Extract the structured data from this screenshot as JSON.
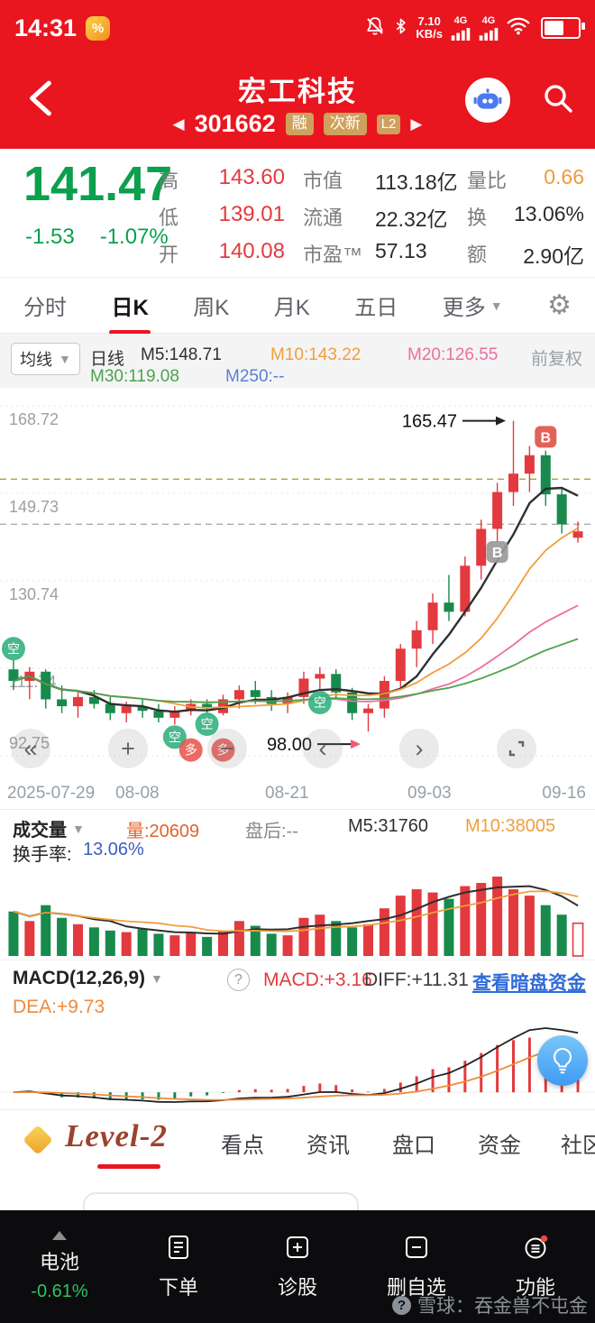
{
  "colors": {
    "brand_red": "#e9151f",
    "up": "#e23a3e",
    "down": "#178a4c",
    "price_green": "#0aa04d",
    "orange": "#ef9f3c",
    "pink": "#ed6ea0",
    "ma_green": "#4ca34c",
    "link_blue": "#2f6bd8",
    "value_blue": "#3b5fc0",
    "badge_tan": "#cfa15d"
  },
  "statusbar": {
    "time": "14:31",
    "net_speed": "7.10",
    "net_unit": "KB/s",
    "sig1": "4G",
    "sig2": "4G"
  },
  "header": {
    "title": "宏工科技",
    "code": "301662",
    "badge_rong": "融",
    "badge_cixin": "次新",
    "badge_l2": "L2"
  },
  "quote": {
    "price": "141.47",
    "change": "-1.53",
    "change_pct": "-1.07%",
    "rows": [
      {
        "l1": "高",
        "v1": "143.60",
        "l2": "市值",
        "v2": "113.18亿",
        "l3": "量比",
        "v3": "0.66"
      },
      {
        "l1": "低",
        "v1": "139.01",
        "l2": "流通",
        "v2": "22.32亿",
        "l3": "换",
        "v3": "13.06%"
      },
      {
        "l1": "开",
        "v1": "140.08",
        "l2": "市盈™",
        "v2": "57.13",
        "l3": "额",
        "v3": "2.90亿"
      }
    ]
  },
  "tabs": {
    "t0": "分时",
    "t1": "日K",
    "t2": "周K",
    "t3": "月K",
    "t4": "五日",
    "more": "更多"
  },
  "ma_legend": {
    "dropdown": "均线",
    "period": "日线",
    "m5": "M5:148.71",
    "m10": "M10:143.22",
    "m20": "M20:126.55",
    "m30": "M30:119.08",
    "m250": "M250:--",
    "adjust": "前复权"
  },
  "volume_legend": {
    "dropdown": "成交量",
    "vol": "量:20609",
    "after_hours": "盘后:--",
    "m5": "M5:31760",
    "m10": "M10:38005",
    "turnover_label": "换手率:",
    "turnover_value": "13.06%"
  },
  "macd_legend": {
    "dropdown": "MACD(12,26,9)",
    "help": "?",
    "macd": "MACD:+3.16",
    "diff": "DIFF:+11.31",
    "dea": "DEA:+9.73",
    "link": "查看暗盘资金"
  },
  "bottom_tabs": {
    "level2": "Level-2",
    "t1": "看点",
    "t2": "资讯",
    "t3": "盘口",
    "t4": "资金",
    "t5": "社区"
  },
  "navbar": {
    "battery_label": "电池",
    "battery_pct": "-0.61%",
    "order": "下单",
    "diagnose": "诊股",
    "remove": "删自选",
    "functions": "功能"
  },
  "watermark": "雪球：吞金兽不屯金",
  "chart_data": [
    {
      "type": "candlestick",
      "symbol": "301662 宏工科技",
      "period": "日K",
      "adjust": "前复权",
      "y_ticks": [
        168.72,
        149.73,
        130.74,
        111.74,
        92.75
      ],
      "ylim": [
        92.75,
        168.72
      ],
      "x_ticks": [
        {
          "label": "2025-07-29",
          "i": 0
        },
        {
          "label": "08-08",
          "i": 8
        },
        {
          "label": "08-21",
          "i": 17
        },
        {
          "label": "09-03",
          "i": 26
        },
        {
          "label": "09-16",
          "i": 35
        }
      ],
      "up_color": "#e23a3e",
      "down_color": "#178a4c",
      "ma_colors": {
        "m5": "#2f2f2f",
        "m10": "#ef9f3c",
        "m20": "#ed6ea0",
        "m30": "#4ca34c"
      },
      "ma_values": {
        "M5": 148.71,
        "M10": 143.22,
        "M20": 126.55,
        "M30": 119.08,
        "M250": null
      },
      "candles": [
        [
          111.5,
          113.5,
          107,
          109
        ],
        [
          109,
          112,
          105,
          111
        ],
        [
          111,
          111.5,
          103,
          105
        ],
        [
          105,
          108,
          102,
          103.5
        ],
        [
          103.5,
          106.5,
          101,
          105.5
        ],
        [
          105.5,
          107,
          103,
          104
        ],
        [
          104,
          105.5,
          100.5,
          102
        ],
        [
          102,
          104.5,
          100,
          103.5
        ],
        [
          103.5,
          105,
          101,
          102.5
        ],
        [
          102.5,
          104,
          100,
          101
        ],
        [
          101,
          103.5,
          99.5,
          102.5
        ],
        [
          102.5,
          105,
          101.5,
          104
        ],
        [
          104,
          105,
          102,
          103
        ],
        [
          102,
          106,
          101.5,
          105
        ],
        [
          105,
          108,
          103,
          107
        ],
        [
          107,
          109,
          104,
          105.5
        ],
        [
          105.5,
          107,
          102.5,
          104
        ],
        [
          104,
          106.5,
          102,
          105.5
        ],
        [
          105.5,
          111,
          104,
          109.5
        ],
        [
          109.5,
          112,
          107,
          110.5
        ],
        [
          110.5,
          111.5,
          105,
          106.5
        ],
        [
          106.5,
          107.5,
          100.5,
          102
        ],
        [
          102,
          104,
          98,
          103
        ],
        [
          103,
          110,
          101,
          109
        ],
        [
          109,
          117,
          107,
          116
        ],
        [
          116,
          122,
          112,
          120
        ],
        [
          120,
          128,
          117,
          126
        ],
        [
          126,
          132,
          122,
          124
        ],
        [
          124,
          136,
          123,
          134
        ],
        [
          134,
          144,
          131,
          142
        ],
        [
          142,
          152,
          139,
          150
        ],
        [
          150,
          165.47,
          147,
          154
        ],
        [
          154,
          160,
          150,
          158
        ],
        [
          158,
          159,
          147,
          149.5
        ],
        [
          149.5,
          151,
          141,
          143
        ],
        [
          140.08,
          143.6,
          139.01,
          141.47
        ]
      ],
      "annotations": [
        {
          "text": "165.47",
          "i": 31,
          "price": 165.47,
          "dy": 0,
          "arrow_color": "#222222"
        },
        {
          "text": "98.00",
          "i": 22,
          "price": 98.0,
          "dy": 14,
          "arrow_color": "#ef5b75"
        }
      ],
      "markers": [
        {
          "t": "空",
          "i": 0,
          "p": 116.0,
          "bg": "#2fae7d"
        },
        {
          "t": "空",
          "i": 10,
          "p": 96.8,
          "bg": "#2fae7d"
        },
        {
          "t": "空",
          "i": 12,
          "p": 99.6,
          "bg": "#2fae7d"
        },
        {
          "t": "空",
          "i": 19,
          "p": 104.3,
          "bg": "#2fae7d"
        },
        {
          "t": "多",
          "i": 11,
          "p": 94.0,
          "bg": "#e8554e"
        },
        {
          "t": "多",
          "i": 13,
          "p": 94.0,
          "bg": "#e8554e"
        },
        {
          "t": "B",
          "i": 30,
          "p": 137.0,
          "bg": "#9a9a9a"
        },
        {
          "t": "B",
          "i": 33,
          "p": 162.0,
          "bg": "#e0554a"
        }
      ],
      "ref_lines": [
        {
          "price": 152.8,
          "color": "#b3a03a"
        },
        {
          "price": 143.0,
          "color": "#aaaaaa"
        }
      ]
    },
    {
      "type": "bar",
      "name": "成交量",
      "latest": 20609,
      "ma": {
        "M5": 31760,
        "M10": 38005
      },
      "turnover": "13.06%",
      "values": [
        28000,
        22000,
        32000,
        24000,
        20000,
        18000,
        16000,
        15000,
        17000,
        14000,
        13000,
        15000,
        12000,
        16000,
        22000,
        19000,
        14000,
        13000,
        24000,
        26000,
        22000,
        18000,
        20000,
        30000,
        38000,
        42000,
        40000,
        36000,
        44000,
        46000,
        50000,
        42000,
        38000,
        32000,
        26000,
        20609
      ]
    },
    {
      "type": "macd",
      "params": [
        12,
        26,
        9
      ],
      "latest": {
        "MACD": 3.16,
        "DIFF": 11.31,
        "DEA": 9.73
      }
    }
  ]
}
